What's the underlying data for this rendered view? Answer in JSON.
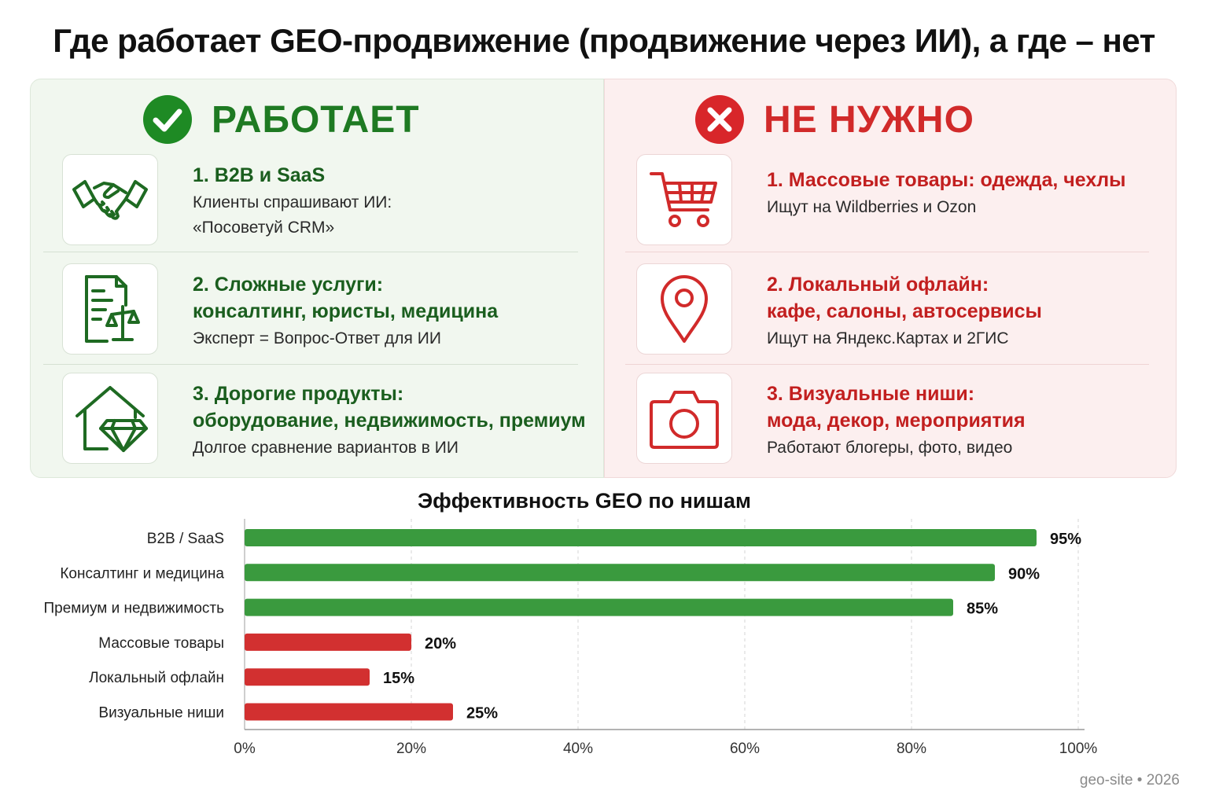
{
  "title": "Где работает GEO-продвижение (продвижение через ИИ), а где – нет",
  "works": {
    "label": "РАБОТАЕТ",
    "items": [
      {
        "icon": "handshake-icon",
        "title": "1. B2B и SaaS",
        "sub": "Клиенты спрашивают ИИ:\n«Посоветуй CRM»"
      },
      {
        "icon": "document-scales-icon",
        "title": "2. Сложные услуги:\nконсалтинг, юристы, медицина",
        "sub": "Эксперт = Вопрос-Ответ для ИИ"
      },
      {
        "icon": "house-diamond-icon",
        "title": "3. Дорогие продукты:\nоборудование, недвижимость, премиум",
        "sub": "Долгое сравнение вариантов в ИИ"
      }
    ]
  },
  "not_needed": {
    "label": "НЕ НУЖНО",
    "items": [
      {
        "icon": "shopping-cart-icon",
        "title": "1. Массовые товары: одежда, чехлы",
        "sub": "Ищут на Wildberries и Ozon"
      },
      {
        "icon": "map-pin-icon",
        "title": "2. Локальный офлайн:\nкафе, салоны, автосервисы",
        "sub": "Ищут на Яндекс.Картах и 2ГИС"
      },
      {
        "icon": "camera-icon",
        "title": "3. Визуальные ниши:\nмода, декор, мероприятия",
        "sub": "Работают блогеры, фото, видео"
      }
    ]
  },
  "colors": {
    "good": "#3a9a3e",
    "bad": "#d23030",
    "good_dark": "#1e7a22",
    "bad_dark": "#d12a2a"
  },
  "chart_data": {
    "type": "bar",
    "orientation": "horizontal",
    "title": "Эффективность GEO по нишам",
    "categories": [
      "B2B / SaaS",
      "Консалтинг и медицина",
      "Премиум и недвижимость",
      "Массовые товары",
      "Локальный офлайн",
      "Визуальные ниши"
    ],
    "values": [
      95,
      90,
      85,
      20,
      15,
      25
    ],
    "value_labels": [
      "95%",
      "90%",
      "85%",
      "20%",
      "15%",
      "25%"
    ],
    "bar_colors": [
      "#3a9a3e",
      "#3a9a3e",
      "#3a9a3e",
      "#d23030",
      "#d23030",
      "#d23030"
    ],
    "xlim": [
      0,
      100
    ],
    "xticks": [
      "0%",
      "20%",
      "40%",
      "60%",
      "80%",
      "100%"
    ],
    "grid": "vertical dashed"
  },
  "footer": "geo-site • 2026"
}
